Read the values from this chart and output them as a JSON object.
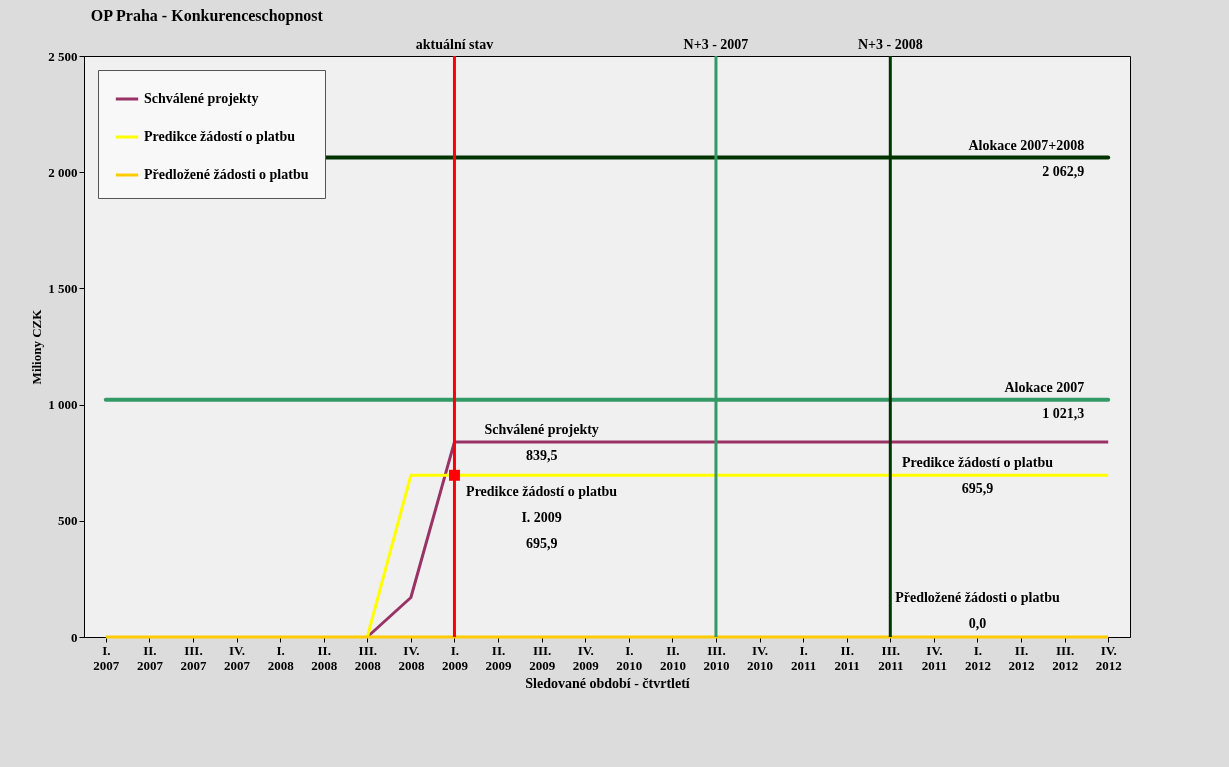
{
  "chart_data": {
    "type": "line",
    "title": "OP Praha - Konkurenceschopnost",
    "xlabel": "Sledované období - čtvrtletí",
    "ylabel": "Miliony CZK",
    "categories": [
      "I. 2007",
      "II. 2007",
      "III. 2007",
      "IV. 2007",
      "I. 2008",
      "II. 2008",
      "III. 2008",
      "IV. 2008",
      "I. 2009",
      "II. 2009",
      "III. 2009",
      "IV. 2009",
      "I. 2010",
      "II. 2010",
      "III. 2010",
      "IV. 2010",
      "I. 2011",
      "II. 2011",
      "III. 2011",
      "IV. 2011",
      "I. 2012",
      "II. 2012",
      "III. 2012",
      "IV. 2012"
    ],
    "series": [
      {
        "name": "Schválené projekty",
        "color": "#993366",
        "values": [
          null,
          null,
          null,
          null,
          null,
          null,
          0,
          170,
          839.5,
          839.5,
          839.5,
          839.5,
          839.5,
          839.5,
          839.5,
          839.5,
          839.5,
          839.5,
          839.5,
          839.5,
          839.5,
          839.5,
          839.5,
          839.5
        ]
      },
      {
        "name": "Predikce žádostí o platbu",
        "color": "#ffff00",
        "values": [
          null,
          null,
          null,
          null,
          null,
          null,
          0,
          695.9,
          695.9,
          695.9,
          695.9,
          695.9,
          695.9,
          695.9,
          695.9,
          695.9,
          695.9,
          695.9,
          695.9,
          695.9,
          695.9,
          695.9,
          695.9,
          695.9
        ]
      },
      {
        "name": "Předložené žádosti o platbu",
        "color": "#ffcc00",
        "values": [
          0,
          0,
          0,
          0,
          0,
          0,
          0,
          0,
          0,
          0,
          0,
          0,
          0,
          0,
          0,
          0,
          0,
          0,
          0,
          0,
          0,
          0,
          0,
          0
        ]
      },
      {
        "type": "scatter",
        "color": "#ff0000",
        "marker": "square",
        "x": [
          "I. 2009"
        ],
        "values": [
          695.9
        ]
      }
    ],
    "ylim": [
      0,
      2500
    ],
    "yticks": [
      0,
      500,
      {
        "value": 1000,
        "label": "1 000"
      },
      {
        "value": 1500,
        "label": "1 500"
      },
      {
        "value": 2000,
        "label": "2 000"
      },
      {
        "value": 2500,
        "label": "2 500"
      }
    ],
    "grid": false,
    "legend": "top left",
    "ref_lines": [
      {
        "axis": "y",
        "value": 2062.9,
        "label": "Alokace 2007+2008\n2 062,9",
        "color": "#003300"
      },
      {
        "axis": "y",
        "value": 1021.3,
        "label": "Alokace 2007\n1 021,3",
        "color": "#339966"
      },
      {
        "axis": "x",
        "value": "I. 2009",
        "label": "aktuální stav",
        "color": "#ff0000"
      },
      {
        "axis": "x",
        "value": "III. 2010",
        "label": "N+3 - 2007",
        "color": "#339966"
      },
      {
        "axis": "x",
        "value": "III. 2011",
        "label": "N+3 - 2008",
        "color": "#003300"
      }
    ],
    "annotations": [
      {
        "text": "Schválené projekty\n839,5",
        "x": "III. 2009",
        "y": 839.5
      },
      {
        "text": "Predikce žádostí o platbu\n695,9",
        "x": "I. 2012",
        "y": 695.9
      },
      {
        "text": "Předložené žádosti o platbu\n0,0",
        "x": "I. 2012",
        "y": 0
      },
      {
        "text": "Predikce žádostí o platbu\nI. 2009\n695,9",
        "x": "III. 2009",
        "y": 695.9
      }
    ]
  }
}
